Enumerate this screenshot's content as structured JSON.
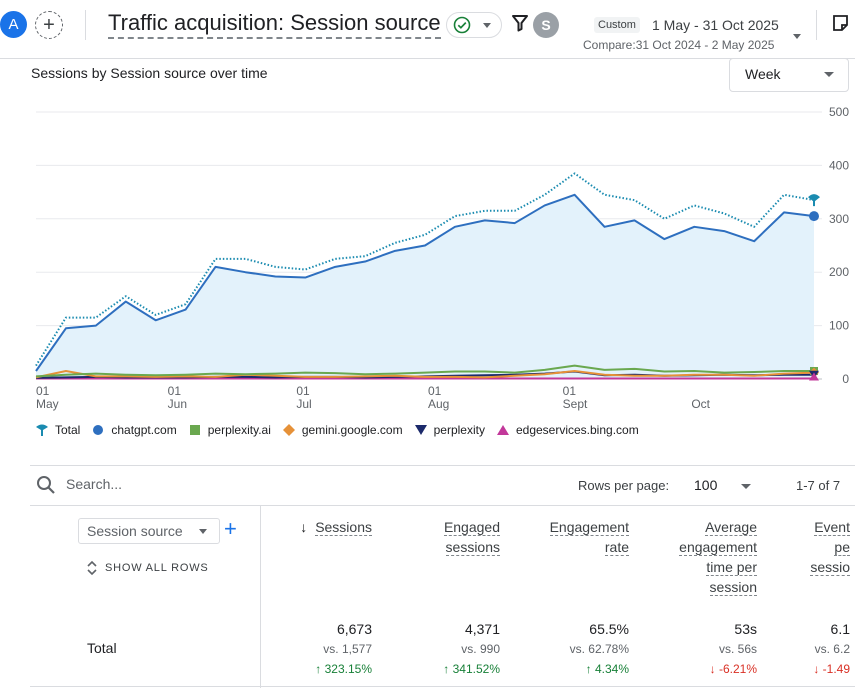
{
  "header": {
    "avatar_letter": "A",
    "title": "Traffic acquisition: Session source",
    "user_letter": "S",
    "custom_chip": "Custom",
    "date_range": "1 May - 31 Oct 2025",
    "compare": "Compare:31 Oct 2024 - 2 May 2025"
  },
  "chart": {
    "title": "Sessions by Session source over time",
    "granularity": "Week",
    "legend": [
      {
        "label": "Total",
        "color": "#1a8bb0",
        "shape": "pin"
      },
      {
        "label": "chatgpt.com",
        "color": "#2e6fbf",
        "shape": "circle"
      },
      {
        "label": "perplexity.ai",
        "color": "#6aa84f",
        "shape": "square"
      },
      {
        "label": "gemini.google.com",
        "color": "#e69138",
        "shape": "diamond"
      },
      {
        "label": "perplexity",
        "color": "#1c2a6b",
        "shape": "triangle-down"
      },
      {
        "label": "edgeservices.bing.com",
        "color": "#c2389a",
        "shape": "triangle-up"
      }
    ]
  },
  "chart_data": {
    "type": "line",
    "y_ticks": [
      "500",
      "400",
      "300",
      "200",
      "100",
      "0"
    ],
    "ylim": [
      0,
      500
    ],
    "x_ticks": [
      {
        "day": "01",
        "month": "May",
        "week_index": 0
      },
      {
        "day": "01",
        "month": "Jun",
        "week_index": 4.4
      },
      {
        "day": "01",
        "month": "Jul",
        "week_index": 8.7
      },
      {
        "day": "01",
        "month": "Aug",
        "week_index": 13.1
      },
      {
        "day": "01",
        "month": "Sept",
        "week_index": 17.6
      },
      {
        "day": "",
        "month": "Oct",
        "week_index": 21.9
      }
    ],
    "grid": true,
    "series": [
      {
        "name": "Total",
        "color": "#1a8bb0",
        "style": "dotted",
        "values": [
          25,
          115,
          115,
          155,
          120,
          140,
          225,
          225,
          210,
          205,
          225,
          230,
          255,
          270,
          305,
          315,
          315,
          345,
          385,
          345,
          335,
          300,
          325,
          310,
          285,
          345,
          335
        ]
      },
      {
        "name": "chatgpt.com",
        "color": "#2e6fbf",
        "style": "solid",
        "fill": "#e3f2fb",
        "values": [
          15,
          95,
          100,
          145,
          110,
          130,
          210,
          200,
          192,
          190,
          210,
          220,
          240,
          250,
          285,
          297,
          292,
          325,
          345,
          285,
          297,
          262,
          285,
          277,
          258,
          312,
          305
        ]
      },
      {
        "name": "perplexity.ai",
        "color": "#6aa84f",
        "style": "solid",
        "values": [
          5,
          8,
          10,
          8,
          7,
          8,
          10,
          9,
          10,
          12,
          11,
          9,
          10,
          12,
          14,
          14,
          12,
          17,
          25,
          17,
          19,
          14,
          15,
          12,
          13,
          15,
          15
        ]
      },
      {
        "name": "gemini.google.com",
        "color": "#e69138",
        "style": "solid",
        "values": [
          3,
          15,
          5,
          5,
          4,
          5,
          4,
          8,
          6,
          4,
          4,
          5,
          6,
          4,
          4,
          3,
          6,
          9,
          15,
          8,
          6,
          6,
          8,
          8,
          6,
          10,
          12
        ]
      },
      {
        "name": "perplexity",
        "color": "#1c2a6b",
        "style": "solid",
        "values": [
          2,
          3,
          4,
          3,
          3,
          3,
          4,
          4,
          3,
          4,
          4,
          3,
          4,
          5,
          6,
          7,
          8,
          10,
          14,
          7,
          8,
          6,
          7,
          8,
          7,
          8,
          8
        ]
      },
      {
        "name": "edgeservices.bing.com",
        "color": "#c2389a",
        "style": "solid",
        "values": [
          1,
          1,
          1,
          1,
          1,
          1,
          1,
          1,
          1,
          1,
          1,
          1,
          1,
          1,
          1,
          1,
          1,
          1,
          1,
          1,
          1,
          1,
          1,
          1,
          1,
          1,
          1
        ]
      }
    ]
  },
  "table": {
    "search_placeholder": "Search...",
    "rows_per_page_label": "Rows per page:",
    "rows_per_page": "100",
    "pagination": "1-7 of 7",
    "dimension": "Session source",
    "show_all_rows": "SHOW ALL ROWS",
    "total_label": "Total",
    "columns": [
      {
        "label_lines": [
          "Sessions"
        ],
        "sorted": true,
        "total": "6,673",
        "vs": "vs. 1,577",
        "change": "↑ 323.15%",
        "dir": "up"
      },
      {
        "label_lines": [
          "Engaged",
          "sessions"
        ],
        "sorted": false,
        "total": "4,371",
        "vs": "vs. 990",
        "change": "↑ 341.52%",
        "dir": "up"
      },
      {
        "label_lines": [
          "Engagement",
          "rate"
        ],
        "sorted": false,
        "total": "65.5%",
        "vs": "vs. 62.78%",
        "change": "↑ 4.34%",
        "dir": "up"
      },
      {
        "label_lines": [
          "Average",
          "engagement",
          "time per",
          "session"
        ],
        "sorted": false,
        "total": "53s",
        "vs": "vs. 56s",
        "change": "↓ -6.21%",
        "dir": "down"
      },
      {
        "label_lines": [
          "Event",
          "pe",
          "sessio"
        ],
        "sorted": false,
        "total": "6.1",
        "vs": "vs. 6.2",
        "change": "↓ -1.49",
        "dir": "down"
      }
    ]
  }
}
